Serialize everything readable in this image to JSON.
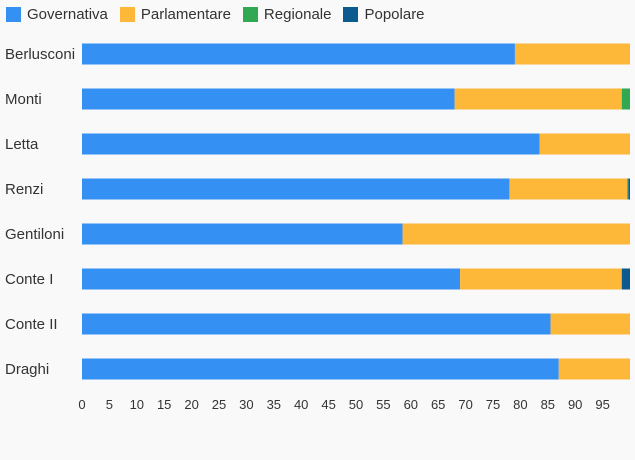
{
  "chart_data": {
    "type": "bar",
    "orientation": "horizontal",
    "stacked": true,
    "categories": [
      "Berlusconi",
      "Monti",
      "Letta",
      "Renzi",
      "Gentiloni",
      "Conte I",
      "Conte II",
      "Draghi"
    ],
    "series": [
      {
        "name": "Governativa",
        "color": "#3590f3",
        "values": [
          79,
          68,
          83.5,
          78,
          58.5,
          69,
          85.5,
          87
        ]
      },
      {
        "name": "Parlamentare",
        "color": "#fdb83a",
        "values": [
          21,
          30.5,
          16.5,
          21.5,
          41.5,
          29.5,
          14.5,
          13
        ]
      },
      {
        "name": "Regionale",
        "color": "#32a852",
        "values": [
          0,
          1.5,
          0,
          0.2,
          0,
          0,
          0,
          0
        ]
      },
      {
        "name": "Popolare",
        "color": "#0c5a8e",
        "values": [
          0,
          0,
          0,
          0.3,
          0,
          1.5,
          0,
          0
        ]
      }
    ],
    "xlim": [
      0,
      100
    ],
    "xticks": [
      0,
      5,
      10,
      15,
      20,
      25,
      30,
      35,
      40,
      45,
      50,
      55,
      60,
      65,
      70,
      75,
      80,
      85,
      90,
      95
    ],
    "legend_position": "top-left",
    "grid": false
  }
}
